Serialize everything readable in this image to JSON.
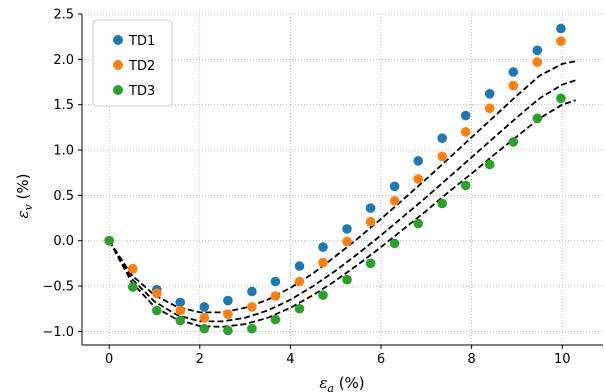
{
  "chart_data": {
    "type": "scatter",
    "title": "",
    "xlabel": {
      "symbol": "ε",
      "sub": "a",
      "unit": " (%)"
    },
    "ylabel": {
      "symbol": "ε",
      "sub": "v",
      "unit": " (%)"
    },
    "xlim": [
      -0.6,
      10.9
    ],
    "ylim": [
      -1.15,
      2.5
    ],
    "xticks": [
      0,
      2,
      4,
      6,
      8,
      10
    ],
    "yticks": [
      -1.0,
      -0.5,
      0.0,
      0.5,
      1.0,
      1.5,
      2.0,
      2.5
    ],
    "ytick_labels": [
      "−1.0",
      "−0.5",
      "0.0",
      "0.5",
      "1.0",
      "1.5",
      "2.0",
      "2.5"
    ],
    "grid": true,
    "legend_position": "top-left",
    "series": [
      {
        "name": "TD1",
        "color": "#1f77b4",
        "x": [
          0,
          0.52,
          1.05,
          1.57,
          2.1,
          2.62,
          3.15,
          3.67,
          4.2,
          4.72,
          5.25,
          5.77,
          6.3,
          6.82,
          7.35,
          7.87,
          8.4,
          8.92,
          9.45,
          9.97
        ],
        "y": [
          0.0,
          -0.31,
          -0.54,
          -0.68,
          -0.73,
          -0.66,
          -0.56,
          -0.45,
          -0.28,
          -0.07,
          0.13,
          0.36,
          0.6,
          0.88,
          1.13,
          1.38,
          1.62,
          1.86,
          2.1,
          2.34
        ]
      },
      {
        "name": "TD2",
        "color": "#ff7f0e",
        "x": [
          0,
          0.52,
          1.05,
          1.57,
          2.1,
          2.62,
          3.15,
          3.67,
          4.2,
          4.72,
          5.25,
          5.77,
          6.3,
          6.82,
          7.35,
          7.87,
          8.4,
          8.92,
          9.45,
          9.97
        ],
        "y": [
          0.0,
          -0.31,
          -0.58,
          -0.77,
          -0.85,
          -0.81,
          -0.73,
          -0.61,
          -0.45,
          -0.24,
          -0.01,
          0.21,
          0.44,
          0.68,
          0.93,
          1.2,
          1.46,
          1.71,
          1.97,
          2.2
        ]
      },
      {
        "name": "TD3",
        "color": "#2ca02c",
        "x": [
          0,
          0.52,
          1.05,
          1.57,
          2.1,
          2.62,
          3.15,
          3.67,
          4.2,
          4.72,
          5.25,
          5.77,
          6.3,
          6.82,
          7.35,
          7.87,
          8.4,
          8.92,
          9.45,
          9.97
        ],
        "y": [
          0.0,
          -0.51,
          -0.77,
          -0.88,
          -0.97,
          -0.99,
          -0.97,
          -0.87,
          -0.75,
          -0.6,
          -0.43,
          -0.25,
          -0.03,
          0.19,
          0.41,
          0.61,
          0.84,
          1.09,
          1.35,
          1.57
        ]
      }
    ],
    "fit_curves": [
      {
        "color": "#000000",
        "style": "dashed",
        "x": [
          0,
          0.5,
          1.0,
          1.5,
          2.0,
          2.5,
          3.0,
          3.5,
          4.0,
          4.5,
          5.0,
          5.5,
          6.0,
          6.5,
          7.0,
          7.5,
          8.0,
          8.5,
          9.0,
          9.5,
          10.0,
          10.3
        ],
        "y": [
          0.0,
          -0.38,
          -0.6,
          -0.73,
          -0.79,
          -0.79,
          -0.74,
          -0.65,
          -0.52,
          -0.36,
          -0.17,
          0.03,
          0.24,
          0.46,
          0.68,
          0.91,
          1.14,
          1.37,
          1.6,
          1.82,
          1.95,
          1.98
        ]
      },
      {
        "color": "#000000",
        "style": "dashed",
        "x": [
          0,
          0.5,
          1.0,
          1.5,
          2.0,
          2.5,
          3.0,
          3.5,
          4.0,
          4.5,
          5.0,
          5.5,
          6.0,
          6.5,
          7.0,
          7.5,
          8.0,
          8.5,
          9.0,
          9.5,
          10.0,
          10.3
        ],
        "y": [
          0.0,
          -0.42,
          -0.67,
          -0.82,
          -0.89,
          -0.89,
          -0.85,
          -0.77,
          -0.65,
          -0.5,
          -0.33,
          -0.14,
          0.06,
          0.27,
          0.48,
          0.7,
          0.92,
          1.14,
          1.36,
          1.57,
          1.72,
          1.77
        ]
      },
      {
        "color": "#000000",
        "style": "dashed",
        "x": [
          0,
          0.5,
          1.0,
          1.5,
          2.0,
          2.5,
          3.0,
          3.5,
          4.0,
          4.5,
          5.0,
          5.5,
          6.0,
          6.5,
          7.0,
          7.5,
          8.0,
          8.5,
          9.0,
          9.5,
          10.0,
          10.3
        ],
        "y": [
          0.0,
          -0.46,
          -0.73,
          -0.87,
          -0.94,
          -0.95,
          -0.92,
          -0.85,
          -0.74,
          -0.6,
          -0.44,
          -0.26,
          -0.07,
          0.13,
          0.33,
          0.54,
          0.74,
          0.95,
          1.15,
          1.35,
          1.5,
          1.55
        ]
      }
    ]
  }
}
